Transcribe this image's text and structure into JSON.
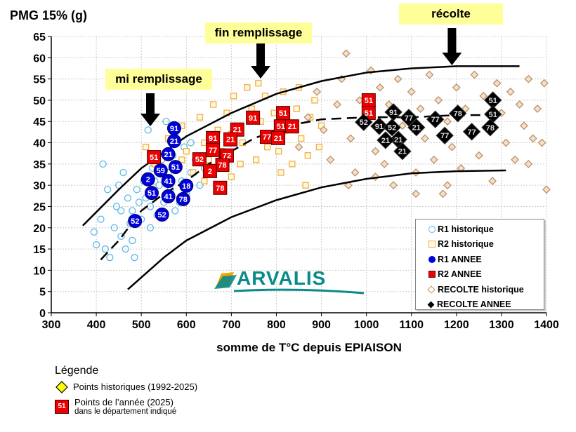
{
  "chart_data": {
    "type": "scatter",
    "ylabel": "PMG 15% (g)",
    "xlabel": "somme de T°C depuis EPIAISON",
    "xlim": [
      300,
      1400
    ],
    "ylim": [
      0,
      65
    ],
    "xticks": [
      300,
      400,
      500,
      600,
      700,
      800,
      900,
      1000,
      1100,
      1200,
      1300,
      1400
    ],
    "yticks": [
      0,
      5,
      10,
      15,
      20,
      25,
      30,
      35,
      40,
      45,
      50,
      55,
      60,
      65
    ],
    "grid": true,
    "legend_position": "bottom-right",
    "legend": [
      {
        "label": "R1 historique",
        "marker": "circle-open",
        "color": "#5bb8e8"
      },
      {
        "label": "R2 historique",
        "marker": "square-open",
        "color": "#f0b040"
      },
      {
        "label": "R1 ANNEE",
        "marker": "circle",
        "color": "#0000dd"
      },
      {
        "label": "R2 ANNEE",
        "marker": "square",
        "color": "#ee0000"
      },
      {
        "label": "RECOLTE historique",
        "marker": "diamond-open",
        "color": "#c09060"
      },
      {
        "label": "RECOLTE ANNEE",
        "marker": "diamond",
        "color": "#000000"
      }
    ],
    "annotations": [
      {
        "text": "mi remplissage",
        "arrow_x": 520
      },
      {
        "text": "fin remplissage",
        "arrow_x": 765
      },
      {
        "text": "récolte",
        "arrow_x": 1190
      }
    ],
    "envelope_upper": [
      [
        370,
        20.5
      ],
      [
        450,
        29
      ],
      [
        500,
        34
      ],
      [
        600,
        41.5
      ],
      [
        700,
        47
      ],
      [
        800,
        51.5
      ],
      [
        900,
        54.5
      ],
      [
        1000,
        56.5
      ],
      [
        1100,
        57.5
      ],
      [
        1200,
        58
      ],
      [
        1340,
        58
      ]
    ],
    "envelope_lower": [
      [
        470,
        5.5
      ],
      [
        550,
        13
      ],
      [
        600,
        17
      ],
      [
        700,
        22.5
      ],
      [
        800,
        26.5
      ],
      [
        900,
        29.5
      ],
      [
        1000,
        31.5
      ],
      [
        1100,
        32.8
      ],
      [
        1200,
        33.3
      ],
      [
        1310,
        33.5
      ]
    ],
    "trend": [
      [
        410,
        12.5
      ],
      [
        450,
        17
      ],
      [
        500,
        24
      ],
      [
        550,
        28
      ],
      [
        600,
        31
      ],
      [
        650,
        35
      ],
      [
        700,
        38
      ],
      [
        750,
        41
      ],
      [
        800,
        43
      ],
      [
        850,
        44.5
      ],
      [
        900,
        45.5
      ],
      [
        1000,
        46
      ],
      [
        1100,
        46
      ],
      [
        1200,
        46.5
      ],
      [
        1280,
        46.5
      ]
    ],
    "series": [
      {
        "name": "R1 historique",
        "points": [
          [
            395,
            19
          ],
          [
            400,
            16
          ],
          [
            410,
            22
          ],
          [
            415,
            35
          ],
          [
            420,
            15
          ],
          [
            425,
            29
          ],
          [
            430,
            13
          ],
          [
            440,
            20
          ],
          [
            445,
            25
          ],
          [
            450,
            30
          ],
          [
            455,
            18
          ],
          [
            460,
            33
          ],
          [
            465,
            15
          ],
          [
            470,
            27
          ],
          [
            475,
            21
          ],
          [
            480,
            24
          ],
          [
            485,
            13
          ],
          [
            490,
            29
          ],
          [
            495,
            26
          ],
          [
            500,
            22
          ],
          [
            505,
            31
          ],
          [
            510,
            27
          ],
          [
            515,
            43
          ],
          [
            520,
            25
          ],
          [
            525,
            34
          ],
          [
            530,
            28
          ],
          [
            535,
            23
          ],
          [
            540,
            30
          ],
          [
            545,
            36
          ],
          [
            550,
            26
          ],
          [
            555,
            45
          ],
          [
            560,
            33
          ],
          [
            565,
            29
          ],
          [
            570,
            37
          ],
          [
            575,
            24
          ],
          [
            580,
            35
          ],
          [
            590,
            31
          ],
          [
            595,
            39
          ],
          [
            600,
            28
          ],
          [
            610,
            33
          ],
          [
            620,
            36
          ],
          [
            630,
            30
          ],
          [
            640,
            34
          ],
          [
            520,
            20
          ],
          [
            530,
            31
          ],
          [
            480,
            17
          ],
          [
            455,
            24
          ],
          [
            610,
            40
          ],
          [
            585,
            26
          ]
        ]
      },
      {
        "name": "R2 historique",
        "points": [
          [
            510,
            39
          ],
          [
            530,
            35
          ],
          [
            560,
            41
          ],
          [
            590,
            44
          ],
          [
            600,
            38
          ],
          [
            615,
            33
          ],
          [
            630,
            46
          ],
          [
            640,
            40
          ],
          [
            650,
            36
          ],
          [
            660,
            49
          ],
          [
            670,
            43
          ],
          [
            680,
            38
          ],
          [
            690,
            47
          ],
          [
            700,
            32
          ],
          [
            705,
            51
          ],
          [
            715,
            44
          ],
          [
            725,
            40
          ],
          [
            735,
            53
          ],
          [
            745,
            48
          ],
          [
            755,
            36
          ],
          [
            765,
            45
          ],
          [
            775,
            51
          ],
          [
            785,
            42
          ],
          [
            795,
            47
          ],
          [
            805,
            38
          ],
          [
            815,
            52
          ],
          [
            825,
            44
          ],
          [
            835,
            35
          ],
          [
            845,
            48
          ],
          [
            855,
            41
          ],
          [
            865,
            30
          ],
          [
            875,
            46
          ],
          [
            885,
            50
          ],
          [
            895,
            39
          ],
          [
            680,
            29
          ],
          [
            720,
            35
          ],
          [
            760,
            54
          ],
          [
            810,
            33
          ],
          [
            850,
            53
          ],
          [
            900,
            44
          ],
          [
            640,
            31
          ],
          [
            590,
            36
          ],
          [
            700,
            42
          ],
          [
            780,
            39
          ],
          [
            870,
            37
          ]
        ]
      },
      {
        "name": "RECOLTE historique",
        "points": [
          [
            850,
            39
          ],
          [
            870,
            46
          ],
          [
            890,
            52
          ],
          [
            905,
            43
          ],
          [
            920,
            36
          ],
          [
            935,
            49
          ],
          [
            945,
            55
          ],
          [
            955,
            61
          ],
          [
            965,
            41
          ],
          [
            975,
            33
          ],
          [
            985,
            50
          ],
          [
            995,
            44
          ],
          [
            1010,
            57
          ],
          [
            1020,
            38
          ],
          [
            1030,
            53
          ],
          [
            1040,
            35
          ],
          [
            1050,
            49
          ],
          [
            1060,
            30
          ],
          [
            1070,
            55
          ],
          [
            1080,
            44
          ],
          [
            1090,
            38
          ],
          [
            1100,
            52
          ],
          [
            1110,
            33
          ],
          [
            1120,
            48
          ],
          [
            1130,
            41
          ],
          [
            1140,
            56
          ],
          [
            1150,
            36
          ],
          [
            1160,
            50
          ],
          [
            1170,
            28
          ],
          [
            1180,
            45
          ],
          [
            1190,
            39
          ],
          [
            1200,
            53
          ],
          [
            1210,
            34
          ],
          [
            1220,
            48
          ],
          [
            1230,
            42
          ],
          [
            1240,
            56
          ],
          [
            1250,
            37
          ],
          [
            1260,
            51
          ],
          [
            1270,
            44
          ],
          [
            1280,
            31
          ],
          [
            1290,
            54
          ],
          [
            1300,
            47
          ],
          [
            1310,
            40
          ],
          [
            1320,
            52
          ],
          [
            1330,
            36
          ],
          [
            1340,
            49
          ],
          [
            1350,
            44
          ],
          [
            1360,
            55
          ],
          [
            1370,
            41
          ],
          [
            1380,
            48
          ],
          [
            1390,
            40
          ],
          [
            1400,
            29
          ],
          [
            1395,
            54
          ],
          [
            1360,
            35
          ],
          [
            1020,
            32
          ],
          [
            960,
            30
          ],
          [
            1180,
            30
          ],
          [
            1110,
            28
          ]
        ]
      },
      {
        "name": "R1 ANNEE",
        "points": [
          {
            "x": 573,
            "y": 43.4,
            "label": "91"
          },
          {
            "x": 573,
            "y": 40.4,
            "label": "21"
          },
          {
            "x": 560,
            "y": 37.3,
            "label": "21"
          },
          {
            "x": 576,
            "y": 34.3,
            "label": "51"
          },
          {
            "x": 515,
            "y": 31.4,
            "label": "2"
          },
          {
            "x": 560,
            "y": 31.0,
            "label": "41"
          },
          {
            "x": 600,
            "y": 29.9,
            "label": "18"
          },
          {
            "x": 593,
            "y": 27.9,
            "label": "78"
          },
          {
            "x": 560,
            "y": 27.4,
            "label": "41"
          },
          {
            "x": 548,
            "y": 28.2,
            "label": "51"
          },
          {
            "x": 546,
            "y": 23.1,
            "label": "52"
          },
          {
            "x": 486,
            "y": 21.6,
            "label": "52"
          },
          {
            "x": 543,
            "y": 33.5,
            "label": "59"
          }
        ]
      },
      {
        "name": "R2 ANNEE",
        "points": [
          {
            "x": 748,
            "y": 45.9,
            "label": "91"
          },
          {
            "x": 815,
            "y": 47.0,
            "label": "51"
          },
          {
            "x": 810,
            "y": 45.0,
            "label": "51"
          },
          {
            "x": 835,
            "y": 45.0,
            "label": "21"
          },
          {
            "x": 713,
            "y": 43.1,
            "label": "21"
          },
          {
            "x": 659,
            "y": 41.1,
            "label": "91"
          },
          {
            "x": 698,
            "y": 40.8,
            "label": "21"
          },
          {
            "x": 779,
            "y": 41.4,
            "label": "77"
          },
          {
            "x": 804,
            "y": 41.1,
            "label": "21"
          },
          {
            "x": 659,
            "y": 38.3,
            "label": "77"
          },
          {
            "x": 629,
            "y": 36.1,
            "label": "52"
          },
          {
            "x": 690,
            "y": 37.0,
            "label": "72"
          },
          {
            "x": 680,
            "y": 34.8,
            "label": "78"
          },
          {
            "x": 665,
            "y": 34.5,
            "label": "2"
          },
          {
            "x": 675,
            "y": 29.4,
            "label": "78"
          },
          {
            "x": 553,
            "y": 34.3,
            "label": "51"
          },
          {
            "x": 1005,
            "y": 50.0,
            "label": "51"
          },
          {
            "x": 1005,
            "y": 47.0,
            "label": "51"
          }
        ]
      },
      {
        "name": "RECOLTE ANNEE",
        "points": [
          {
            "x": 994,
            "y": 46.0,
            "label": "52"
          },
          {
            "x": 1060,
            "y": 47.2,
            "label": "91"
          },
          {
            "x": 1094,
            "y": 45.9,
            "label": "77"
          },
          {
            "x": 1016,
            "y": 43.9,
            "label": "91"
          },
          {
            "x": 1057,
            "y": 43.6,
            "label": "52"
          },
          {
            "x": 1071,
            "y": 41.9,
            "label": "21"
          },
          {
            "x": 1055,
            "y": 40.6,
            "label": "21"
          },
          {
            "x": 1080,
            "y": 40.3,
            "label": "21"
          },
          {
            "x": 1111,
            "y": 43.6,
            "label": "21"
          },
          {
            "x": 1153,
            "y": 45.5,
            "label": "77"
          },
          {
            "x": 1203,
            "y": 46.9,
            "label": "78"
          },
          {
            "x": 1174,
            "y": 41.7,
            "label": "77"
          },
          {
            "x": 1234,
            "y": 42.6,
            "label": "77"
          },
          {
            "x": 1281,
            "y": 50.0,
            "label": "51"
          },
          {
            "x": 1281,
            "y": 46.7,
            "label": "51"
          },
          {
            "x": 1275,
            "y": 45.9,
            "label": "78"
          }
        ]
      }
    ]
  },
  "logo_text": "ARVALIS",
  "bottom_legend": {
    "title": "Légende",
    "historic_label": "Points historiques (1992-2025)",
    "year_badge": "51",
    "year_label": "Points de l’année (2025)",
    "year_sublabel": "dans le département indiqué",
    "historic_color": "#ffff00",
    "year_color": "#ee0000"
  }
}
